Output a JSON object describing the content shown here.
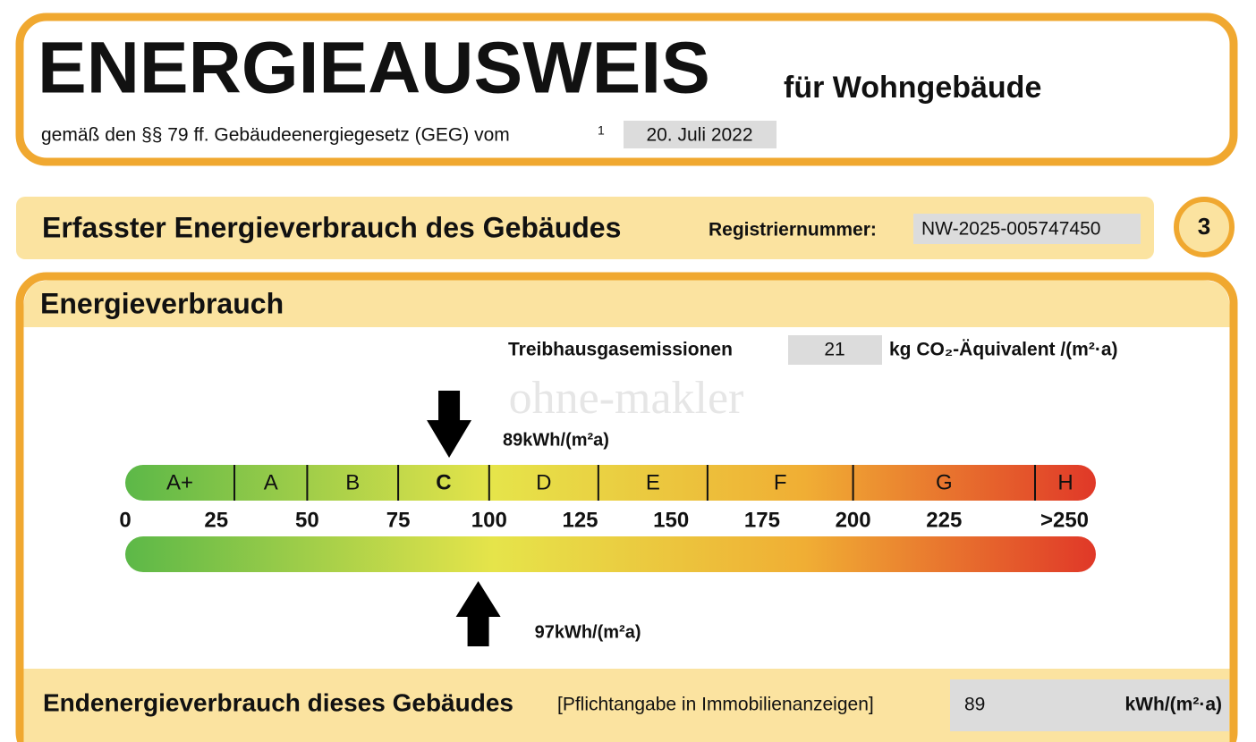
{
  "header": {
    "title": "ENERGIEAUSWEIS",
    "subtitle": "für Wohngebäude",
    "basis": "gemäß den §§ 79 ff. Gebäudeenergiegesetz (GEG) vom",
    "footnote": "1",
    "date": "20. Juli 2022"
  },
  "section": {
    "title": "Erfasster Energieverbrauch des Gebäudes",
    "registration_label": "Registriernummer:",
    "registration_number": "NW-2025-005747450",
    "page": "3"
  },
  "consumption": {
    "title": "Energieverbrauch",
    "emissions_label": "Treibhausgasemissionen",
    "emissions": 21,
    "emissions_unit": "kg CO₂-Äquivalent /(m²·a)",
    "scale": {
      "xlim": [
        0,
        250
      ],
      "xticks": [
        0,
        25,
        50,
        75,
        100,
        125,
        150,
        175,
        200,
        225,
        {
          "value": 250,
          "label": ">250"
        }
      ],
      "classes": [
        "A+",
        "A",
        "B",
        "C",
        "D",
        "E",
        "F",
        "G",
        "H"
      ],
      "class_limits": [
        30,
        50,
        75,
        100,
        130,
        160,
        200,
        250
      ]
    },
    "end_energy": {
      "value": 89,
      "value_label": "89kWh/(m²a)"
    },
    "primary_energy": {
      "value": 97,
      "value_label": "97kWh/(m²a)"
    }
  },
  "footer": {
    "label": "Endenergieverbrauch dieses Gebäudes",
    "note": "[Pflichtangabe in Immobilienanzeigen]",
    "value": 89,
    "unit": "kWh/(m²·a)"
  },
  "watermark": "ohne-makler"
}
